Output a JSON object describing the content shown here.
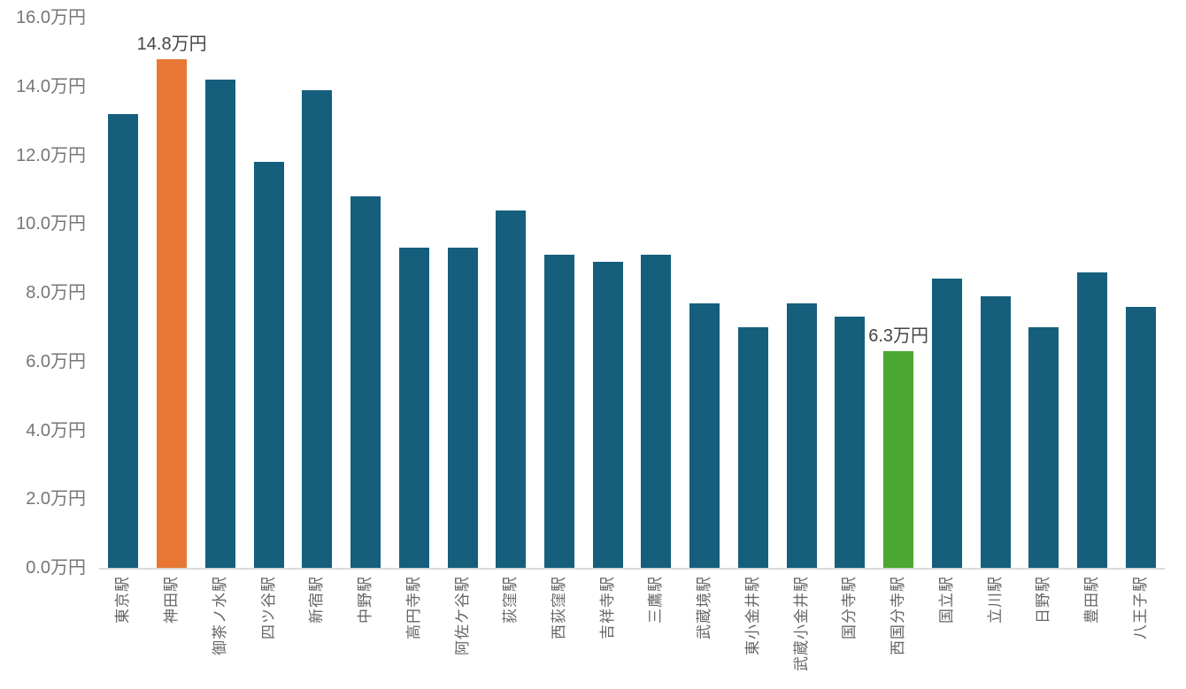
{
  "chart_data": {
    "type": "bar",
    "title": "",
    "unit": "万円",
    "categories": [
      "東京駅",
      "神田駅",
      "御茶ノ水駅",
      "四ツ谷駅",
      "新宿駅",
      "中野駅",
      "高円寺駅",
      "阿佐ケ谷駅",
      "荻窪駅",
      "西荻窪駅",
      "吉祥寺駅",
      "三鷹駅",
      "武蔵境駅",
      "東小金井駅",
      "武蔵小金井駅",
      "国分寺駅",
      "西国分寺駅",
      "国立駅",
      "立川駅",
      "日野駅",
      "豊田駅",
      "八王子駅"
    ],
    "values": [
      13.2,
      14.8,
      14.2,
      11.8,
      13.9,
      10.8,
      9.3,
      9.3,
      10.4,
      9.1,
      8.9,
      9.1,
      7.7,
      7.0,
      7.7,
      7.3,
      6.3,
      8.4,
      7.9,
      7.0,
      8.6,
      7.6
    ],
    "ylim": [
      0,
      16
    ],
    "y_ticks": [
      {
        "value": 0,
        "label": "0.0万円"
      },
      {
        "value": 2,
        "label": "2.0万円"
      },
      {
        "value": 4,
        "label": "4.0万円"
      },
      {
        "value": 6,
        "label": "6.0万円"
      },
      {
        "value": 8,
        "label": "8.0万円"
      },
      {
        "value": 10,
        "label": "10.0万円"
      },
      {
        "value": 12,
        "label": "12.0万円"
      },
      {
        "value": 14,
        "label": "14.0万円"
      },
      {
        "value": 16,
        "label": "16.0万円"
      }
    ],
    "annotations": [
      {
        "index": 1,
        "label": "14.8万円",
        "color": "#e87733"
      },
      {
        "index": 16,
        "label": "6.3万円",
        "color": "#4ca832"
      }
    ],
    "colors": {
      "bar": "#155f7d",
      "highlight_orange": "#e87733",
      "highlight_green": "#4ca832",
      "axis_line": "#d9d9d9",
      "tick_text": "#767676",
      "category_text": "#666666",
      "value_label_text": "#454545"
    },
    "grid": false,
    "legend": false
  }
}
